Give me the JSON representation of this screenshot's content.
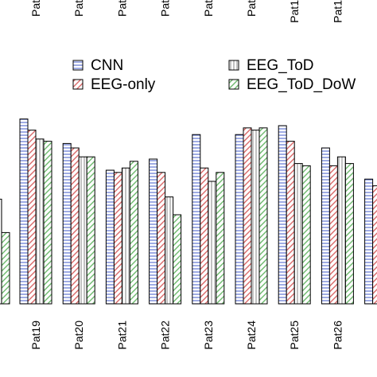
{
  "chart_data": {
    "type": "bar",
    "categories": [
      "Pat19",
      "Pat20",
      "Pat21",
      "Pat22",
      "Pat23",
      "Pat24",
      "Pat25",
      "Pat26"
    ],
    "top_tick_labels": [
      "Pat",
      "Pat",
      "Pat",
      "Pat",
      "Pat",
      "Pat",
      "Pat1",
      "Pat1"
    ],
    "series": [
      {
        "name": "CNN",
        "values": [
          0.83,
          0.72,
          0.6,
          0.65,
          0.76,
          0.76,
          0.8,
          0.7
        ]
      },
      {
        "name": "EEG-only",
        "values": [
          0.78,
          0.7,
          0.59,
          0.59,
          0.61,
          0.79,
          0.73,
          0.62
        ]
      },
      {
        "name": "EEG_ToD",
        "values": [
          0.74,
          0.66,
          0.61,
          0.48,
          0.55,
          0.78,
          0.63,
          0.66
        ]
      },
      {
        "name": "EEG_ToD_DoW",
        "values": [
          0.73,
          0.66,
          0.64,
          0.4,
          0.59,
          0.79,
          0.62,
          0.63
        ]
      }
    ],
    "partial_left_values": [
      0.47,
      0.32
    ],
    "partial_right_values": [
      0.56,
      0.53
    ],
    "ylim": [
      0,
      1.15
    ],
    "legend_placement": "top",
    "colors": {
      "CNN": "#6b7fd6",
      "EEG-only": "#d65a5a",
      "EEG_ToD": "#9a9a9a",
      "EEG_ToD_DoW": "#5fb25f"
    }
  }
}
